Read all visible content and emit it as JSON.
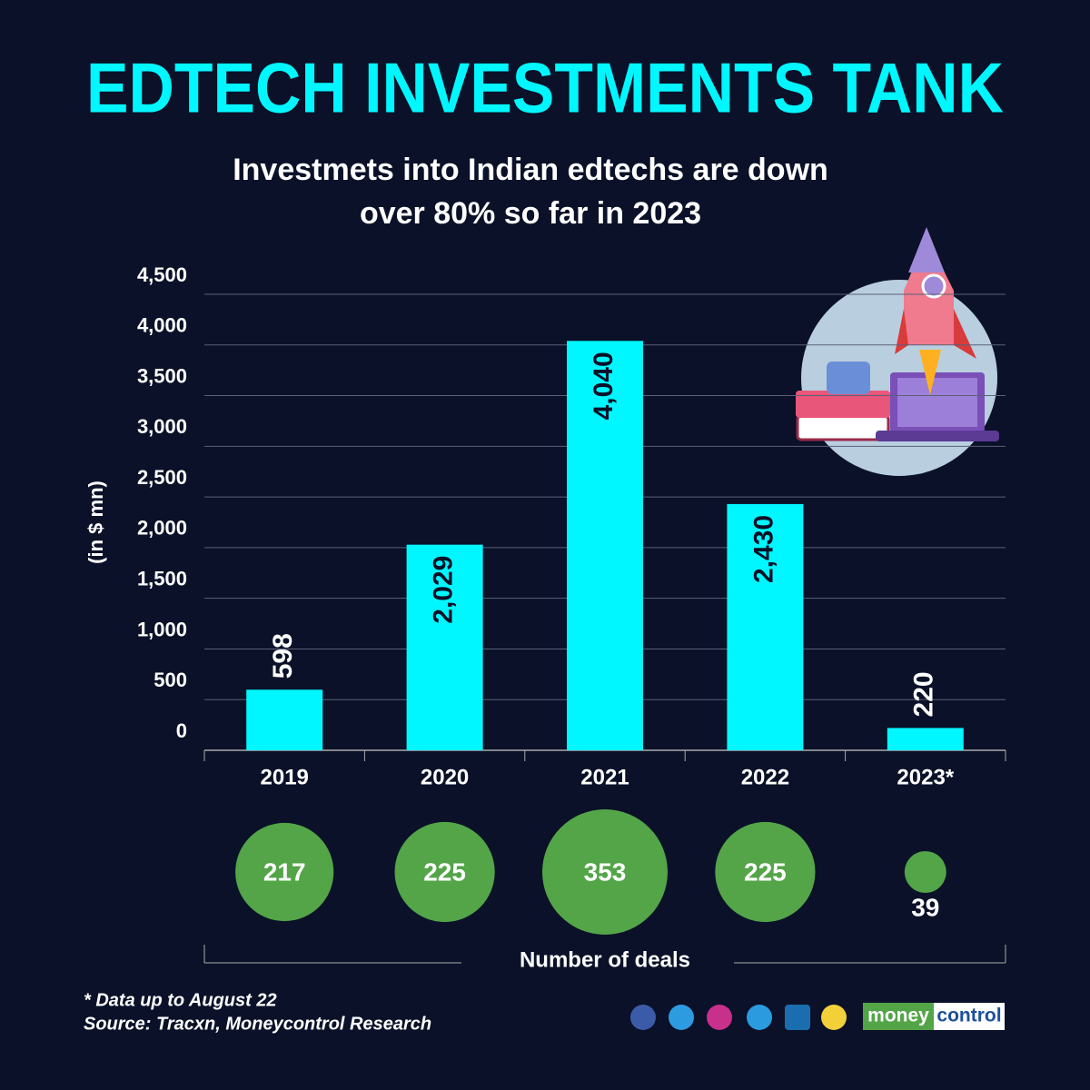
{
  "chart_data": {
    "type": "bar",
    "title": "EDTECH INVESTMENTS TANK",
    "subtitle": [
      "Investmets into Indian edtechs are down",
      "over 80% so far in 2023"
    ],
    "y_label": "(in $ mn)",
    "categories": [
      "2019",
      "2020",
      "2021",
      "2022",
      "2023*"
    ],
    "values": [
      598,
      2029,
      4040,
      2430,
      220
    ],
    "value_labels": [
      "598",
      "2,029",
      "4,040",
      "2,430",
      "220"
    ],
    "color": "#00f7ff",
    "ylim": [
      0,
      4500
    ],
    "yticks": [
      0,
      500,
      {
        "value": 1000,
        "label": "1,000"
      },
      {
        "value": 1500,
        "label": "1,500"
      },
      {
        "value": 2000,
        "label": "2,000"
      },
      {
        "value": 2500,
        "label": "2,500"
      },
      {
        "value": 3000,
        "label": "3,000"
      },
      {
        "value": 3500,
        "label": "3,500"
      },
      {
        "value": 4000,
        "label": "4,000"
      },
      {
        "value": 4500,
        "label": "4,500"
      }
    ],
    "grid": true,
    "deals": {
      "label": "Number of deals",
      "values": [
        217,
        225,
        353,
        225,
        39
      ],
      "color": "#53a548"
    },
    "notes": [
      "* Data up to August 22",
      "Source: Tracxn, Moneycontrol Research"
    ],
    "brand": [
      "money",
      "control"
    ]
  }
}
